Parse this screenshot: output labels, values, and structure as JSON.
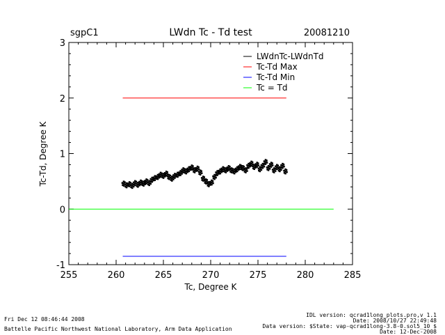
{
  "header": {
    "site": "sgpC1",
    "date": "20081210"
  },
  "footer": {
    "timestamp": "Fri Dec 12 08:46:44 2008",
    "lab": "Battelle Pacific Northwest National Laboratory, Arm Data Application",
    "idl_version": "IDL version: qcrad1long_plots.pro,v 1.1",
    "idl_date": "Date: 2008/10/27 22:49:48",
    "data_version": "Data version: $State: vap-qcrad1long-3.8-0.sol5_10 $",
    "data_date": "Date: 12-Dec-2008"
  },
  "chart_data": {
    "type": "scatter",
    "title": "LWdn Tc - Td test",
    "xlabel": "Tc, Degree K",
    "ylabel": "Tc-Td, Degree K",
    "xlim": [
      255,
      285
    ],
    "ylim": [
      -1,
      3
    ],
    "xticks": [
      "255",
      "260",
      "265",
      "270",
      "275",
      "280",
      "285"
    ],
    "yticks": [
      "-1",
      "0",
      "1",
      "2",
      "3"
    ],
    "legend_position": "top-right",
    "legend": [
      {
        "label": "LWdnTc-LWdnTd",
        "color": "#000000"
      },
      {
        "label": "Tc-Td Max",
        "color": "#ff0000"
      },
      {
        "label": "Tc-Td Min",
        "color": "#0000ff"
      },
      {
        "label": "Tc = Td",
        "color": "#00ff00"
      }
    ],
    "lines": [
      {
        "name": "Tc-Td Max",
        "color": "#ff0000",
        "x": [
          260.7,
          278.0
        ],
        "y": [
          2.0,
          2.0
        ]
      },
      {
        "name": "Tc-Td Min",
        "color": "#0000ff",
        "x": [
          260.7,
          278.0
        ],
        "y": [
          -0.85,
          -0.85
        ]
      },
      {
        "name": "Tc = Td",
        "color": "#00ff00",
        "x": [
          255,
          283
        ],
        "y": [
          0,
          0
        ]
      }
    ],
    "series": [
      {
        "name": "LWdnTc-LWdnTd",
        "color": "#000000",
        "x": [
          260.8,
          261.1,
          261.4,
          261.7,
          262.0,
          262.3,
          262.6,
          262.9,
          263.2,
          263.5,
          263.8,
          264.1,
          264.4,
          264.7,
          265.0,
          265.3,
          265.6,
          265.9,
          266.2,
          266.5,
          266.8,
          267.1,
          267.4,
          267.7,
          268.0,
          268.3,
          268.6,
          268.9,
          269.2,
          269.5,
          269.8,
          270.1,
          270.4,
          270.7,
          271.0,
          271.3,
          271.6,
          271.9,
          272.2,
          272.5,
          272.8,
          273.1,
          273.4,
          273.7,
          274.0,
          274.3,
          274.6,
          274.9,
          275.2,
          275.5,
          275.8,
          276.1,
          276.4,
          276.7,
          277.0,
          277.3,
          277.6,
          277.9
        ],
        "y": [
          0.46,
          0.43,
          0.45,
          0.42,
          0.47,
          0.44,
          0.48,
          0.46,
          0.5,
          0.47,
          0.53,
          0.56,
          0.58,
          0.62,
          0.6,
          0.64,
          0.58,
          0.55,
          0.6,
          0.62,
          0.65,
          0.7,
          0.68,
          0.72,
          0.75,
          0.7,
          0.73,
          0.66,
          0.55,
          0.5,
          0.45,
          0.48,
          0.58,
          0.65,
          0.68,
          0.72,
          0.7,
          0.74,
          0.7,
          0.68,
          0.72,
          0.76,
          0.74,
          0.7,
          0.78,
          0.82,
          0.76,
          0.8,
          0.72,
          0.78,
          0.85,
          0.74,
          0.8,
          0.7,
          0.76,
          0.72,
          0.78,
          0.68
        ]
      }
    ]
  }
}
